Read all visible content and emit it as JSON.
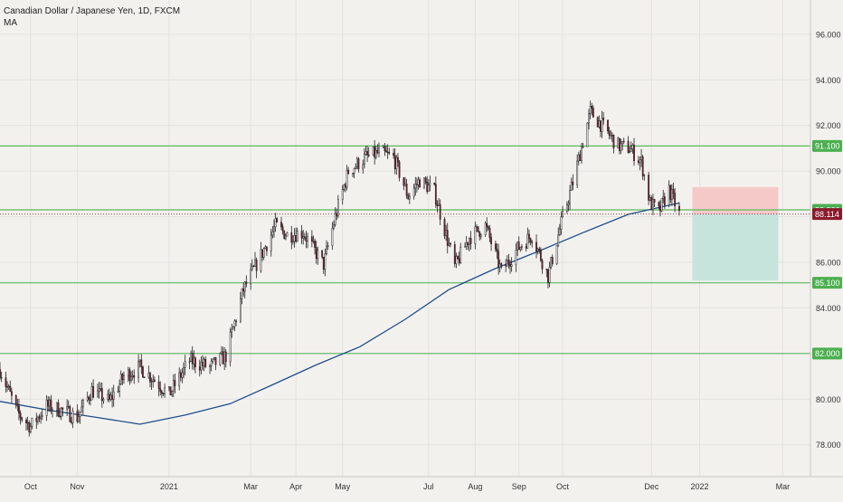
{
  "header": {
    "title": "Canadian Dollar / Japanese Yen, 1D, FXCM",
    "indicator": "MA"
  },
  "colors": {
    "background": "#f3f1ee",
    "grid": "#e4e2de",
    "level_line": "#5cb85c",
    "level_badge": "#4caf50",
    "ma_line": "#1e4f8a",
    "bull_candle": "#ffffff",
    "bear_candle": "#8a1a2c",
    "wick": "#222222",
    "stop_zone": "#f6c9c9",
    "target_zone": "#c6e4dc",
    "price_badge": "#8a1a2c",
    "price_line": "#8a1a2c"
  },
  "chart_data": {
    "type": "candlestick",
    "symbol": "CADJPY",
    "title": "Canadian Dollar / Japanese Yen, 1D, FXCM",
    "ylim": [
      76.6,
      97.5
    ],
    "y_ticks": [
      "78.000",
      "80.000",
      "82.000",
      "84.000",
      "86.000",
      "88.000",
      "90.000",
      "92.000",
      "94.000",
      "96.000"
    ],
    "y_tick_values": [
      78,
      80,
      82,
      84,
      86,
      88,
      90,
      92,
      94,
      96
    ],
    "x_axis": {
      "start": "2020-09-10",
      "end": "2022-03-20",
      "ticks": [
        {
          "label": "Oct",
          "date": "2020-10-01"
        },
        {
          "label": "Nov",
          "date": "2020-11-02"
        },
        {
          "label": "2021",
          "date": "2021-01-04"
        },
        {
          "label": "Mar",
          "date": "2021-03-01"
        },
        {
          "label": "Apr",
          "date": "2021-04-01"
        },
        {
          "label": "May",
          "date": "2021-05-03"
        },
        {
          "label": "Jul",
          "date": "2021-07-01"
        },
        {
          "label": "Aug",
          "date": "2021-08-02"
        },
        {
          "label": "Sep",
          "date": "2021-09-01"
        },
        {
          "label": "Oct",
          "date": "2021-10-01"
        },
        {
          "label": "Dec",
          "date": "2021-12-01"
        },
        {
          "label": "2022",
          "date": "2022-01-03"
        },
        {
          "label": "Mar",
          "date": "2022-03-01"
        }
      ]
    },
    "price_path": [
      [
        "2020-09-10",
        81.3
      ],
      [
        "2020-09-22",
        79.4
      ],
      [
        "2020-10-01",
        78.8
      ],
      [
        "2020-10-12",
        79.7
      ],
      [
        "2020-10-23",
        79.5
      ],
      [
        "2020-11-02",
        79.2
      ],
      [
        "2020-11-12",
        80.4
      ],
      [
        "2020-11-24",
        79.9
      ],
      [
        "2020-12-04",
        81.0
      ],
      [
        "2020-12-15",
        81.4
      ],
      [
        "2020-12-24",
        80.9
      ],
      [
        "2021-01-04",
        80.2
      ],
      [
        "2021-01-18",
        81.7
      ],
      [
        "2021-02-01",
        81.4
      ],
      [
        "2021-02-12",
        81.9
      ],
      [
        "2021-02-24",
        84.8
      ],
      [
        "2021-03-08",
        86.3
      ],
      [
        "2021-03-18",
        87.6
      ],
      [
        "2021-03-26",
        87.2
      ],
      [
        "2021-04-06",
        87.3
      ],
      [
        "2021-04-20",
        85.9
      ],
      [
        "2021-04-28",
        88.0
      ],
      [
        "2021-05-07",
        90.0
      ],
      [
        "2021-05-19",
        90.6
      ],
      [
        "2021-05-28",
        90.8
      ],
      [
        "2021-06-07",
        90.6
      ],
      [
        "2021-06-17",
        88.9
      ],
      [
        "2021-06-25",
        89.6
      ],
      [
        "2021-07-05",
        89.1
      ],
      [
        "2021-07-19",
        85.8
      ],
      [
        "2021-07-29",
        87.1
      ],
      [
        "2021-08-09",
        87.6
      ],
      [
        "2021-08-20",
        85.6
      ],
      [
        "2021-08-31",
        86.6
      ],
      [
        "2021-09-10",
        87.2
      ],
      [
        "2021-09-21",
        85.4
      ],
      [
        "2021-09-30",
        87.7
      ],
      [
        "2021-10-08",
        89.5
      ],
      [
        "2021-10-20",
        92.6
      ],
      [
        "2021-10-28",
        92.0
      ],
      [
        "2021-11-08",
        91.1
      ],
      [
        "2021-11-16",
        91.0
      ],
      [
        "2021-11-24",
        90.4
      ],
      [
        "2021-11-30",
        88.6
      ],
      [
        "2021-12-06",
        88.2
      ],
      [
        "2021-12-13",
        89.2
      ],
      [
        "2021-12-20",
        88.11
      ]
    ],
    "moving_average": [
      [
        "2020-09-10",
        79.9
      ],
      [
        "2020-10-15",
        79.5
      ],
      [
        "2020-11-15",
        79.2
      ],
      [
        "2020-12-15",
        78.9
      ],
      [
        "2021-01-15",
        79.3
      ],
      [
        "2021-02-15",
        79.8
      ],
      [
        "2021-03-15",
        80.6
      ],
      [
        "2021-04-15",
        81.5
      ],
      [
        "2021-05-15",
        82.3
      ],
      [
        "2021-06-15",
        83.5
      ],
      [
        "2021-07-15",
        84.8
      ],
      [
        "2021-08-15",
        85.7
      ],
      [
        "2021-09-15",
        86.5
      ],
      [
        "2021-10-15",
        87.3
      ],
      [
        "2021-11-15",
        88.1
      ],
      [
        "2021-12-20",
        88.6
      ]
    ],
    "horizontal_levels": [
      {
        "value": 91.1,
        "label": "91.100"
      },
      {
        "value": 88.3,
        "label": "88.300"
      },
      {
        "value": 85.1,
        "label": "85.100"
      },
      {
        "value": 82.0,
        "label": "82.000"
      }
    ],
    "current_price": {
      "value": 88.114,
      "label": "88.114"
    },
    "position": {
      "entry": 88.1,
      "stop": 89.3,
      "target": 85.2,
      "start": "2021-12-29",
      "end": "2022-02-26"
    }
  }
}
